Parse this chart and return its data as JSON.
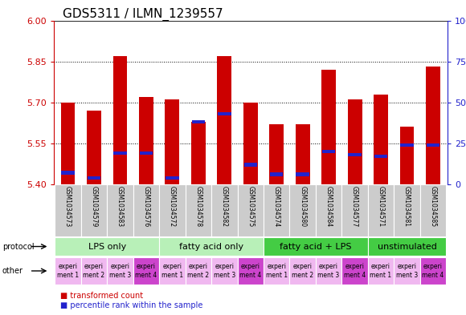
{
  "title": "GDS5311 / ILMN_1239557",
  "samples": [
    "GSM1034573",
    "GSM1034579",
    "GSM1034583",
    "GSM1034576",
    "GSM1034572",
    "GSM1034578",
    "GSM1034582",
    "GSM1034575",
    "GSM1034574",
    "GSM1034580",
    "GSM1034584",
    "GSM1034577",
    "GSM1034571",
    "GSM1034581",
    "GSM1034585"
  ],
  "red_values": [
    5.7,
    5.67,
    5.87,
    5.72,
    5.71,
    5.63,
    5.87,
    5.7,
    5.62,
    5.62,
    5.82,
    5.71,
    5.73,
    5.61,
    5.83
  ],
  "blue_values": [
    0.07,
    0.04,
    0.19,
    0.19,
    0.04,
    0.38,
    0.43,
    0.12,
    0.06,
    0.06,
    0.2,
    0.18,
    0.17,
    0.24,
    0.24
  ],
  "ylim_left": [
    5.4,
    6.0
  ],
  "ylim_right": [
    0,
    100
  ],
  "yticks_left": [
    5.4,
    5.55,
    5.7,
    5.85,
    6.0
  ],
  "yticks_right": [
    0,
    25,
    50,
    75,
    100
  ],
  "ytick_labels_right": [
    "0",
    "25",
    "50",
    "75",
    "100%"
  ],
  "bar_width": 0.55,
  "red_color": "#CC0000",
  "blue_color": "#2222CC",
  "protocol_groups": [
    {
      "label": "LPS only",
      "start": 0,
      "end": 4,
      "color": "#b8f0b8"
    },
    {
      "label": "fatty acid only",
      "start": 4,
      "end": 8,
      "color": "#b8f0b8"
    },
    {
      "label": "fatty acid + LPS",
      "start": 8,
      "end": 12,
      "color": "#44cc44"
    },
    {
      "label": "unstimulated",
      "start": 12,
      "end": 15,
      "color": "#44cc44"
    }
  ],
  "other_colors": [
    "#f0b8f0",
    "#f0b8f0",
    "#f0b8f0",
    "#cc44cc",
    "#f0b8f0",
    "#f0b8f0",
    "#f0b8f0",
    "#cc44cc",
    "#f0b8f0",
    "#f0b8f0",
    "#f0b8f0",
    "#cc44cc",
    "#f0b8f0",
    "#f0b8f0",
    "#cc44cc"
  ],
  "other_labels": [
    "experi\nment 1",
    "experi\nment 2",
    "experi\nment 3",
    "experi\nment 4",
    "experi\nment 1",
    "experi\nment 2",
    "experi\nment 3",
    "experi\nment 4",
    "experi\nment 1",
    "experi\nment 2",
    "experi\nment 3",
    "experi\nment 4",
    "experi\nment 1",
    "experi\nment 3",
    "experi\nment 4"
  ],
  "background_color": "#ffffff",
  "left_yaxis_color": "#CC0000",
  "right_yaxis_color": "#2222CC",
  "sample_bg_color": "#cccccc",
  "title_fontsize": 11,
  "tick_fontsize": 8,
  "bar_label_fontsize": 5.5,
  "prot_fontsize": 8,
  "other_fontsize": 5.5,
  "legend_fontsize": 7
}
